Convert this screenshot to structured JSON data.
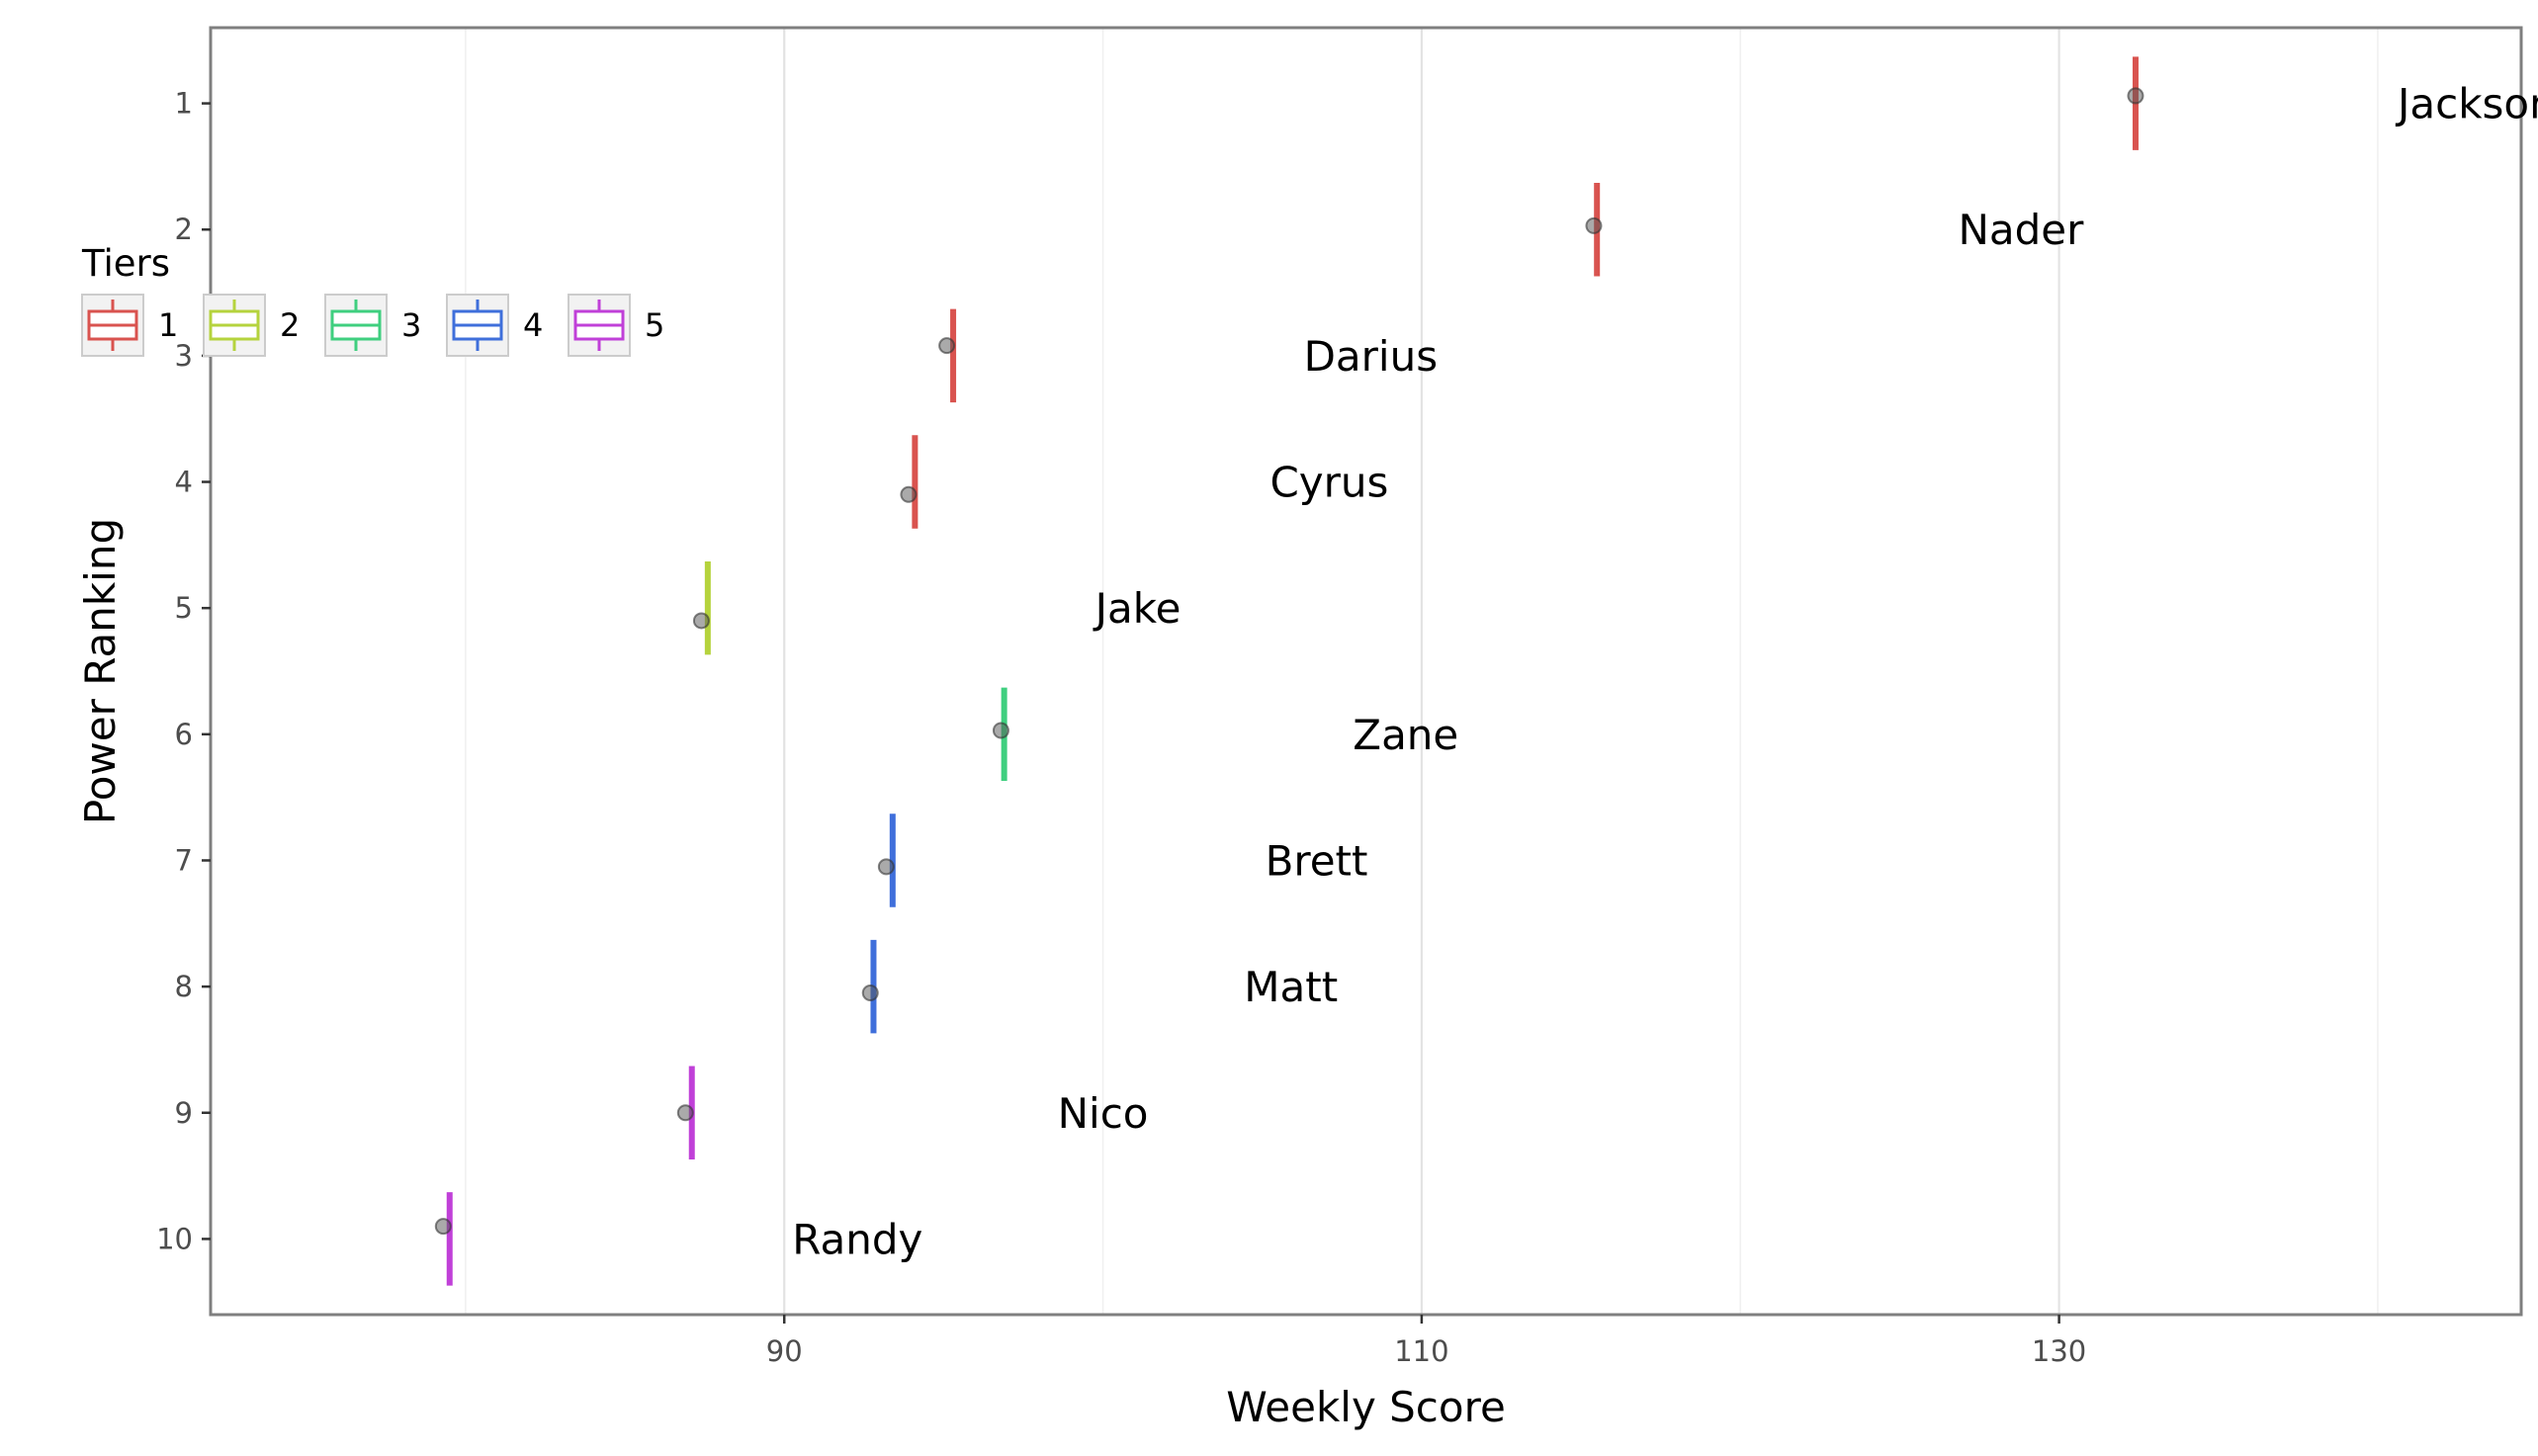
{
  "chart_data": {
    "type": "scatter",
    "xlabel": "Weekly Score",
    "ylabel": "Power Ranking",
    "xlim": [
      72,
      144.5
    ],
    "ylim": [
      0.4,
      10.6
    ],
    "x_ticks": [
      90,
      110,
      130
    ],
    "y_ticks": [
      1,
      2,
      3,
      4,
      5,
      6,
      7,
      8,
      9,
      10
    ],
    "grid": true,
    "legend": {
      "title": "Tiers",
      "placement": "top-left",
      "entries": [
        {
          "label": "1",
          "color": "#d9534f"
        },
        {
          "label": "2",
          "color": "#b5d33d"
        },
        {
          "label": "3",
          "color": "#3fcf7f"
        },
        {
          "label": "4",
          "color": "#3f6fdb"
        },
        {
          "label": "5",
          "color": "#c040d8"
        }
      ]
    },
    "series": [
      {
        "name": "Jackson",
        "rank": 1,
        "tier": 1,
        "mean": 132.4,
        "point": [
          132.4,
          0.94
        ],
        "label_x": 143.1
      },
      {
        "name": "Nader",
        "rank": 2,
        "tier": 1,
        "mean": 115.5,
        "point": [
          115.4,
          1.97
        ],
        "label_x": 128.8
      },
      {
        "name": "Darius",
        "rank": 3,
        "tier": 1,
        "mean": 95.3,
        "point": [
          95.1,
          2.92
        ],
        "label_x": 108.4
      },
      {
        "name": "Cyrus",
        "rank": 4,
        "tier": 1,
        "mean": 94.1,
        "point": [
          93.9,
          4.1
        ],
        "label_x": 107.1
      },
      {
        "name": "Jake",
        "rank": 5,
        "tier": 2,
        "mean": 87.6,
        "point": [
          87.4,
          5.1
        ],
        "label_x": 101.1
      },
      {
        "name": "Zane",
        "rank": 6,
        "tier": 3,
        "mean": 96.9,
        "point": [
          96.8,
          5.97
        ],
        "label_x": 109.5
      },
      {
        "name": "Brett",
        "rank": 7,
        "tier": 4,
        "mean": 93.4,
        "point": [
          93.2,
          7.05
        ],
        "label_x": 106.7
      },
      {
        "name": "Matt",
        "rank": 8,
        "tier": 4,
        "mean": 92.8,
        "point": [
          92.7,
          8.05
        ],
        "label_x": 105.9
      },
      {
        "name": "Nico",
        "rank": 9,
        "tier": 5,
        "mean": 87.1,
        "point": [
          86.9,
          9.0
        ],
        "label_x": 100.0
      },
      {
        "name": "Randy",
        "rank": 10,
        "tier": 5,
        "mean": 79.5,
        "point": [
          79.3,
          9.9
        ],
        "label_x": 92.3
      }
    ]
  }
}
